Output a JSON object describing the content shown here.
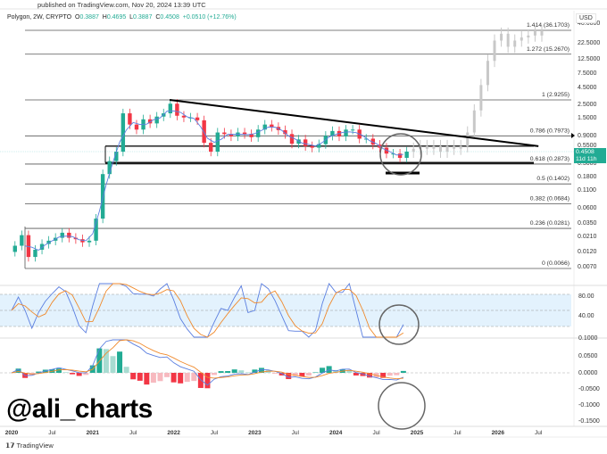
{
  "header": {
    "published": "published on TradingView.com, Nov 20, 2024 13:39 UTC",
    "symbol": "Polygon, 2W, CRYPTO",
    "open_label": "O",
    "open": "0.3887",
    "high_label": "H",
    "high": "0.4695",
    "low_label": "L",
    "low": "0.3887",
    "close_label": "C",
    "close": "0.4508",
    "change": "+0.0510 (+12.76%)"
  },
  "price_axis": {
    "currency": "USD",
    "labels": [
      "40.0000",
      "22.5000",
      "12.5000",
      "7.5000",
      "4.5000",
      "2.5000",
      "1.5000",
      "0.9000",
      "0.5500",
      "0.3000",
      "0.1800",
      "0.1100",
      "0.0600",
      "0.0350",
      "0.0210",
      "0.0120",
      "0.0070"
    ],
    "current_price": "0.4508",
    "countdown": "11d 11h"
  },
  "indicator_axis": {
    "stoch_labels": [
      "80.00",
      "40.00"
    ],
    "macd_labels": [
      "0.1000",
      "0.0500",
      "0.0000",
      "-0.0500",
      "-0.1000",
      "-0.1500"
    ]
  },
  "time_axis": [
    "2020",
    "Jul",
    "2021",
    "Jul",
    "2022",
    "Jul",
    "2023",
    "Jul",
    "2024",
    "Jul",
    "2025",
    "Jul",
    "2026",
    "Jul"
  ],
  "watermark": "@ali_charts",
  "footer": "TradingView",
  "colors": {
    "up": "#22ab94",
    "down": "#f23645",
    "ma": "#5b7fe0",
    "signal": "#f08a2c",
    "ghost": "#c8c8c8",
    "band": "#e3f2fd"
  },
  "chart_data": {
    "type": "candlestick",
    "title": "Polygon, 2W, CRYPTO",
    "scale": "log",
    "ylim": [
      0.0066,
      40
    ],
    "start_year": 2020,
    "interval": "monthly (approx.)",
    "closes": [
      0.015,
      0.022,
      0.01,
      0.013,
      0.016,
      0.018,
      0.02,
      0.024,
      0.02,
      0.019,
      0.017,
      0.018,
      0.04,
      0.2,
      0.32,
      0.45,
      1.8,
      1.2,
      1.0,
      1.45,
      1.25,
      1.6,
      1.8,
      2.55,
      1.65,
      1.55,
      1.55,
      1.4,
      0.62,
      0.45,
      0.9,
      0.85,
      0.78,
      0.9,
      0.85,
      0.76,
      1.0,
      1.2,
      1.1,
      0.98,
      0.85,
      0.6,
      0.7,
      0.55,
      0.52,
      0.59,
      0.8,
      0.95,
      0.78,
      1.0,
      1.0,
      0.72,
      0.72,
      0.58,
      0.52,
      0.42,
      0.42,
      0.36,
      0.4508
    ],
    "projection": [
      0.5,
      0.55,
      0.5,
      0.55,
      0.45,
      0.55,
      0.5,
      0.55,
      0.9,
      2.0,
      5,
      12,
      25,
      32,
      20,
      25,
      28,
      30,
      35,
      30
    ],
    "fib_levels": [
      {
        "ratio": "1.414",
        "price": 36.1703,
        "label": "1.414 (36.1703)"
      },
      {
        "ratio": "1.272",
        "price": 15.267,
        "label": "1.272 (15.2670)"
      },
      {
        "ratio": "1",
        "price": 2.9255,
        "label": "1 (2.9255)"
      },
      {
        "ratio": "0.786",
        "price": 0.7973,
        "label": "0.786 (0.7973)"
      },
      {
        "ratio": "0.618",
        "price": 0.2873,
        "label": "0.618 (0.2873)"
      },
      {
        "ratio": "0.5",
        "price": 0.1402,
        "label": "0.5 (0.1402)"
      },
      {
        "ratio": "0.382",
        "price": 0.0684,
        "label": "0.382 (0.0684)"
      },
      {
        "ratio": "0.236",
        "price": 0.0281,
        "label": "0.236 (0.0281)"
      },
      {
        "ratio": "0",
        "price": 0.0066,
        "label": "0 (0.0066)"
      }
    ],
    "trendline": {
      "from": [
        2021.95,
        2.9255
      ],
      "to": [
        2026.5,
        0.55
      ]
    },
    "support_zone": {
      "top": 0.55,
      "bottom": 0.3
    },
    "stoch_levels": [
      80,
      50,
      20
    ],
    "macd_ylim": [
      -0.17,
      0.12
    ]
  }
}
